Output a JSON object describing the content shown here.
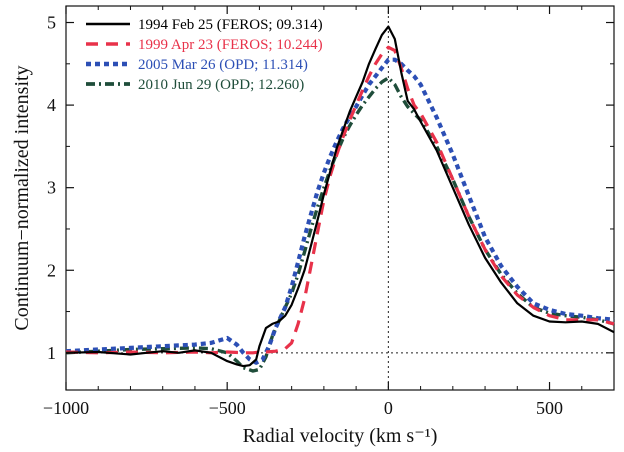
{
  "chart_data": {
    "type": "line",
    "title": "",
    "xlabel": "Radial velocity (km s⁻¹)",
    "ylabel": "Continuum−normalized intensity",
    "xlim": [
      -1000,
      700
    ],
    "ylim": [
      0.55,
      5.2
    ],
    "xticks": [
      -1000,
      -500,
      0,
      500
    ],
    "xtick_labels": [
      "−1000",
      "−500",
      "0",
      "500"
    ],
    "yticks": [
      1,
      2,
      3,
      4,
      5
    ],
    "ytick_labels": [
      "1",
      "2",
      "3",
      "4",
      "5"
    ],
    "reference_lines": {
      "x": 0,
      "y": 1
    },
    "legend_position": "top-left",
    "grid": false,
    "series": [
      {
        "name": "1994 Feb 25 (FEROS; 09.314)",
        "color": "#000000",
        "dash": "solid",
        "x": [
          -1000,
          -900,
          -800,
          -750,
          -700,
          -650,
          -600,
          -550,
          -500,
          -470,
          -450,
          -430,
          -410,
          -400,
          -380,
          -360,
          -340,
          -320,
          -300,
          -280,
          -260,
          -240,
          -220,
          -200,
          -180,
          -160,
          -140,
          -120,
          -100,
          -80,
          -60,
          -40,
          -20,
          0,
          20,
          40,
          60,
          80,
          100,
          150,
          200,
          250,
          300,
          350,
          400,
          450,
          500,
          550,
          600,
          650,
          700
        ],
        "y": [
          1.0,
          1.01,
          0.98,
          1.0,
          1.02,
          1.0,
          1.03,
          1.0,
          0.9,
          0.86,
          0.84,
          0.85,
          0.92,
          1.08,
          1.3,
          1.35,
          1.38,
          1.45,
          1.58,
          1.78,
          2.0,
          2.3,
          2.6,
          2.92,
          3.2,
          3.48,
          3.7,
          3.92,
          4.1,
          4.28,
          4.5,
          4.68,
          4.85,
          4.95,
          4.8,
          4.4,
          4.05,
          3.95,
          3.8,
          3.45,
          3.0,
          2.55,
          2.15,
          1.85,
          1.6,
          1.45,
          1.38,
          1.37,
          1.38,
          1.35,
          1.25
        ]
      },
      {
        "name": "1999 Apr 23 (FEROS; 10.244)",
        "color": "#e8324a",
        "dash": "12 8",
        "x": [
          -1000,
          -900,
          -800,
          -700,
          -600,
          -550,
          -500,
          -450,
          -420,
          -400,
          -380,
          -350,
          -320,
          -300,
          -280,
          -260,
          -240,
          -220,
          -200,
          -180,
          -160,
          -140,
          -120,
          -100,
          -80,
          -60,
          -40,
          -20,
          0,
          20,
          40,
          60,
          80,
          100,
          150,
          200,
          250,
          300,
          350,
          400,
          450,
          500,
          550,
          600,
          650,
          700
        ],
        "y": [
          1.01,
          1.0,
          1.01,
          1.0,
          1.01,
          1.0,
          1.01,
          1.0,
          1.0,
          1.01,
          1.01,
          1.02,
          1.05,
          1.12,
          1.35,
          1.65,
          2.05,
          2.45,
          2.85,
          3.15,
          3.4,
          3.62,
          3.82,
          4.0,
          4.18,
          4.35,
          4.5,
          4.62,
          4.7,
          4.66,
          4.45,
          4.2,
          4.0,
          3.9,
          3.55,
          3.1,
          2.65,
          2.25,
          1.93,
          1.7,
          1.55,
          1.45,
          1.4,
          1.4,
          1.4,
          1.35
        ]
      },
      {
        "name": "2005 Mar 26 (OPD; 11.314)",
        "color": "#2c4fb5",
        "dash": "5 4",
        "x": [
          -1000,
          -900,
          -800,
          -700,
          -600,
          -550,
          -500,
          -470,
          -450,
          -430,
          -410,
          -390,
          -370,
          -350,
          -320,
          -300,
          -280,
          -260,
          -240,
          -220,
          -200,
          -180,
          -160,
          -140,
          -120,
          -100,
          -80,
          -60,
          -40,
          -20,
          0,
          20,
          40,
          60,
          80,
          100,
          150,
          200,
          250,
          300,
          350,
          400,
          450,
          500,
          550,
          600,
          650,
          700
        ],
        "y": [
          1.02,
          1.04,
          1.06,
          1.08,
          1.1,
          1.12,
          1.18,
          1.1,
          1.0,
          0.92,
          0.88,
          0.92,
          1.08,
          1.3,
          1.55,
          1.8,
          2.1,
          2.4,
          2.68,
          2.95,
          3.18,
          3.38,
          3.56,
          3.72,
          3.86,
          3.98,
          4.12,
          4.25,
          4.35,
          4.45,
          4.55,
          4.55,
          4.5,
          4.42,
          4.35,
          4.25,
          3.85,
          3.4,
          2.9,
          2.4,
          2.05,
          1.8,
          1.6,
          1.52,
          1.47,
          1.45,
          1.42,
          1.4
        ]
      },
      {
        "name": "2010 Jun 29 (OPD; 12.260)",
        "color": "#1f4d3a",
        "dash": "9 4 2 4",
        "x": [
          -1000,
          -900,
          -800,
          -700,
          -600,
          -550,
          -500,
          -470,
          -450,
          -420,
          -400,
          -380,
          -360,
          -340,
          -320,
          -300,
          -280,
          -260,
          -240,
          -220,
          -200,
          -180,
          -160,
          -140,
          -120,
          -100,
          -80,
          -60,
          -40,
          -20,
          0,
          20,
          40,
          60,
          80,
          100,
          150,
          200,
          250,
          300,
          350,
          400,
          450,
          500,
          550,
          600,
          650,
          700
        ],
        "y": [
          1.0,
          1.02,
          1.04,
          1.05,
          1.06,
          1.05,
          1.0,
          0.9,
          0.82,
          0.78,
          0.8,
          0.95,
          1.2,
          1.38,
          1.55,
          1.72,
          1.95,
          2.22,
          2.5,
          2.76,
          3.0,
          3.22,
          3.42,
          3.6,
          3.75,
          3.88,
          4.0,
          4.1,
          4.2,
          4.28,
          4.33,
          4.25,
          4.1,
          3.98,
          3.9,
          3.82,
          3.5,
          3.1,
          2.65,
          2.25,
          1.95,
          1.72,
          1.55,
          1.48,
          1.45,
          1.43,
          1.4,
          1.35
        ]
      }
    ]
  }
}
